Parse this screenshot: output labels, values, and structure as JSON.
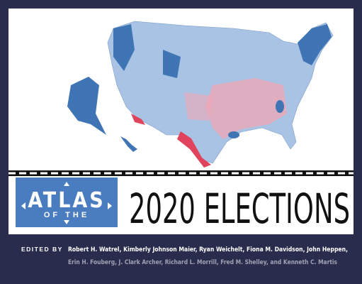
{
  "cover": {
    "title_top": "ATLAS",
    "title_mid": "OF THE",
    "title_main": "2020 ELECTIONS",
    "edited_by": "EDITED BY",
    "editors": [
      "Robert H. Watrel, Kimberly Johnson Maier, Ryan Weichelt, Fiona M. Davidson, John Heppen,",
      "Erin H. Fouberg, J. Clark Archer, Richard L. Morrill, Fred M. Shelley, and Kenneth C. Martis"
    ]
  }
}
